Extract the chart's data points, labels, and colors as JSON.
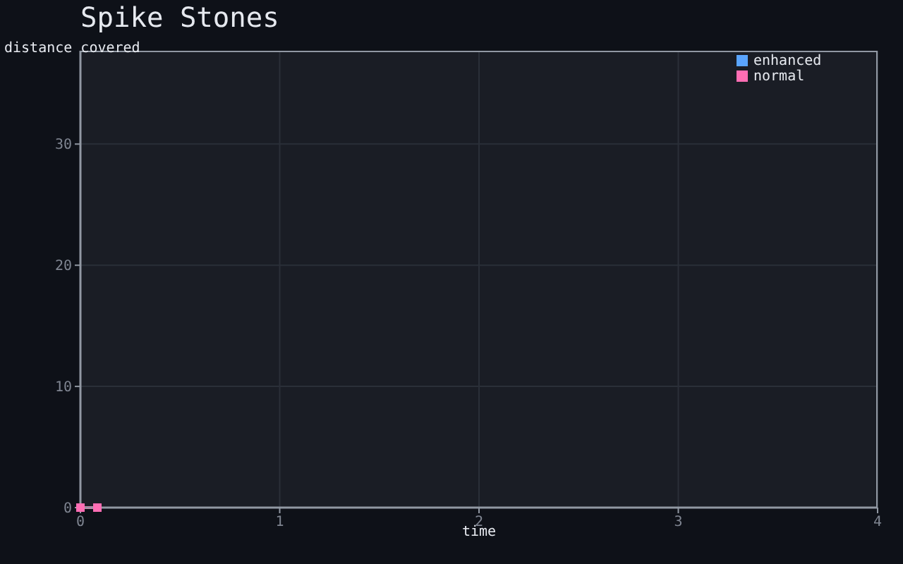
{
  "chart_data": {
    "type": "line",
    "title": "Spike Stones",
    "xlabel": "time",
    "ylabel": "distance covered",
    "series": [
      {
        "name": "enhanced",
        "color": "#5aa5ff"
      },
      {
        "name": "normal",
        "color": "#ff6eb4",
        "x": [
          0,
          0.085
        ],
        "values": [
          0,
          0
        ]
      }
    ],
    "xlim": [
      0,
      4
    ],
    "xticks": [
      0,
      1,
      2,
      3,
      4
    ],
    "ylim": [
      0,
      37.7
    ],
    "yticks": [
      0,
      10,
      20,
      30
    ],
    "grid": true,
    "legend": "top right",
    "marker": "square",
    "line_style": "solid"
  }
}
